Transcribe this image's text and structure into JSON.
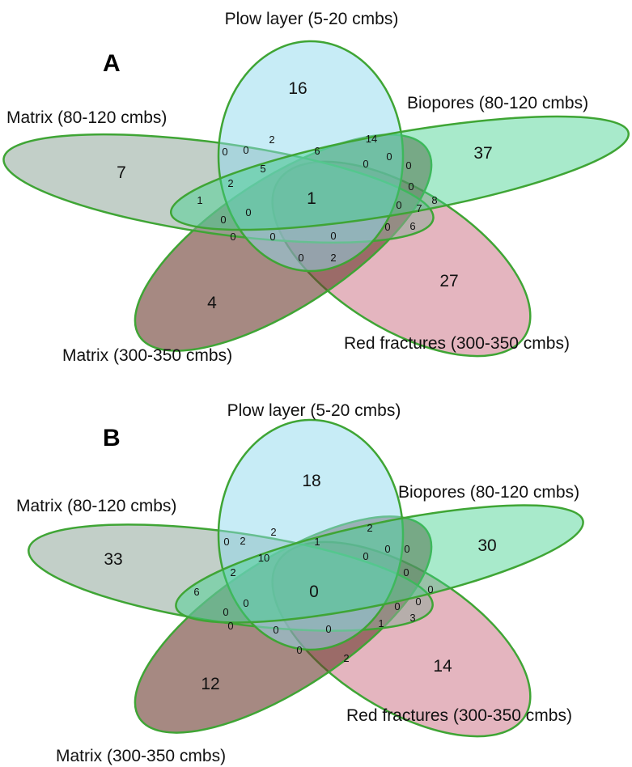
{
  "panels": [
    {
      "letter": "A",
      "sets": {
        "plow": "Plow layer (5-20 cmbs)",
        "biopores": "Biopores (80-120 cmbs)",
        "matrix80": "Matrix (80-120 cmbs)",
        "matrix300": "Matrix (300-350 cmbs)",
        "red": "Red fractures (300-350 cmbs)"
      },
      "counts": [
        "16",
        "37",
        "7",
        "4",
        "27",
        "1",
        "2",
        "6",
        "14",
        "0",
        "0",
        "5",
        "0",
        "0",
        "0",
        "2",
        "1",
        "0",
        "0",
        "0",
        "8",
        "7",
        "0",
        "6",
        "0",
        "0",
        "0",
        "0",
        "0",
        "2"
      ]
    },
    {
      "letter": "B",
      "sets": {
        "plow": "Plow layer (5-20 cmbs)",
        "biopores": "Biopores (80-120 cmbs)",
        "matrix80": "Matrix (80-120 cmbs)",
        "matrix300": "Matrix (300-350 cmbs)",
        "red": "Red fractures (300-350 cmbs)"
      },
      "counts": [
        "18",
        "30",
        "33",
        "12",
        "14",
        "0",
        "2",
        "1",
        "2",
        "0",
        "2",
        "10",
        "0",
        "0",
        "0",
        "2",
        "6",
        "0",
        "0",
        "0",
        "0",
        "0",
        "1",
        "3",
        "0",
        "0",
        "0",
        "0",
        "0",
        "2"
      ]
    }
  ],
  "colors": {
    "plow": "#8fdaee",
    "biopores": "#3dd18c",
    "matrix80": "#8fa89a",
    "matrix300": "#6b3a2e",
    "red": "#c45a72",
    "outline": "#3fa535"
  }
}
